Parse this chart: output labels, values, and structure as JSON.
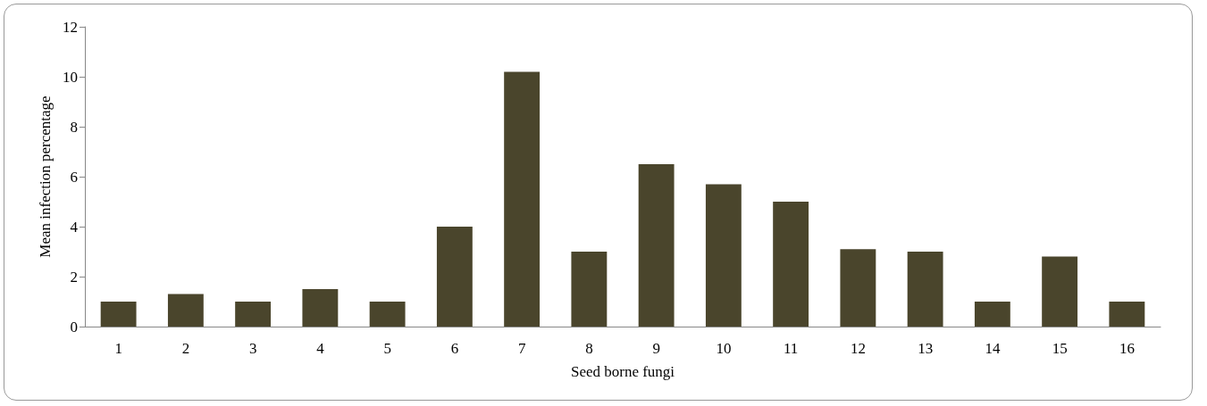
{
  "chart_data": {
    "type": "bar",
    "xlabel": "Seed borne fungi",
    "ylabel": "Mean infection percentage",
    "categories": [
      "1",
      "2",
      "3",
      "4",
      "5",
      "6",
      "7",
      "8",
      "9",
      "10",
      "11",
      "12",
      "13",
      "14",
      "15",
      "16"
    ],
    "values": [
      1.0,
      1.3,
      1.0,
      1.5,
      1.0,
      4.0,
      10.2,
      3.0,
      6.5,
      5.7,
      5.0,
      3.1,
      3.0,
      1.0,
      2.8,
      1.0
    ],
    "color": "#4a452c",
    "ylim": [
      0,
      12
    ],
    "yticks": [
      0,
      2,
      4,
      6,
      8,
      10,
      12
    ],
    "grid": false
  }
}
